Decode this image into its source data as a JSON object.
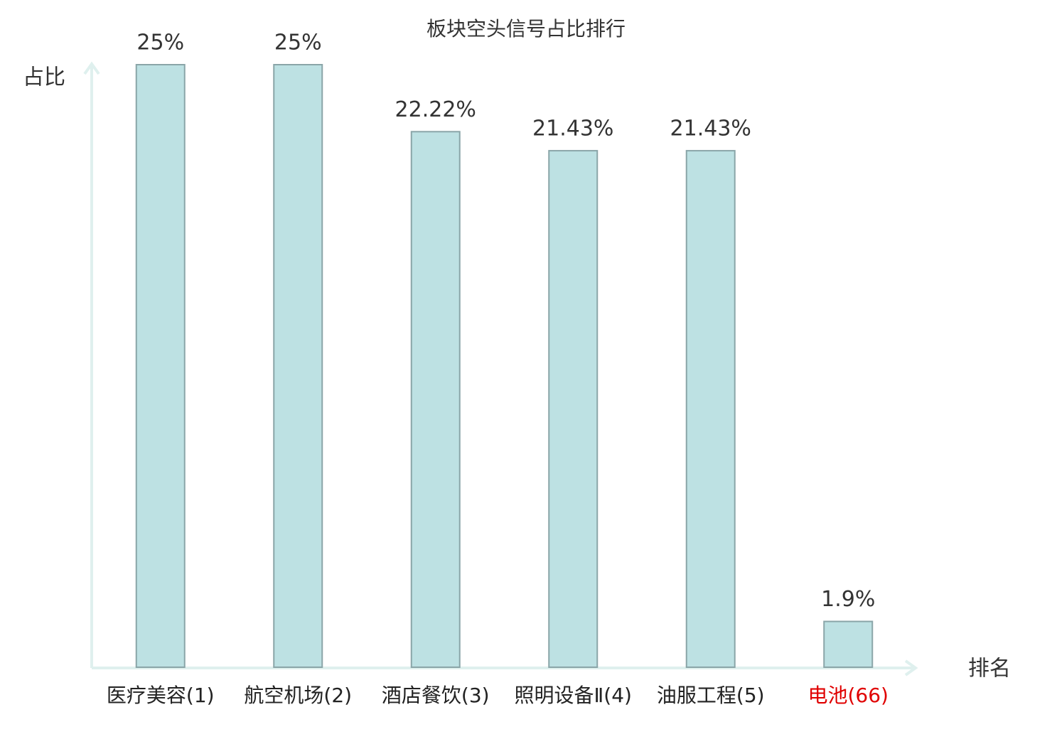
{
  "chart_data": {
    "type": "bar",
    "title": "板块空头信号占比排行",
    "y_label": "占比",
    "x_label": "排名",
    "categories": [
      "医疗美容(1)",
      "航空机场(2)",
      "酒店餐饮(3)",
      "照明设备Ⅱ(4)",
      "油服工程(5)",
      "电池(66)"
    ],
    "values": [
      25,
      25,
      22.22,
      21.43,
      21.43,
      1.9
    ],
    "value_labels": [
      "25%",
      "25%",
      "22.22%",
      "21.43%",
      "21.43%",
      "1.9%"
    ],
    "color": "#bde1e3",
    "edge_color": "#8aa5a8",
    "label_colors": [
      "#222222",
      "#222222",
      "#222222",
      "#222222",
      "#222222",
      "#e00000"
    ],
    "ylim": [
      0,
      25
    ]
  }
}
